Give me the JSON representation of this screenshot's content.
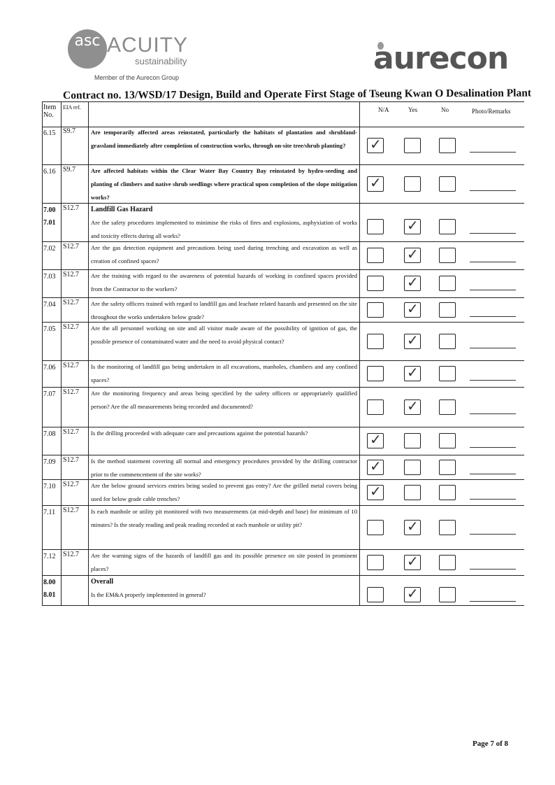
{
  "header": {
    "acuity_logo": {
      "monogram": "asc",
      "name": "ACUITY",
      "sub": "sustainability",
      "member_line": "Member of the Aurecon Group"
    },
    "aurecon_logo": "aurecon",
    "contract_title": "Contract no.  13/WSD/17 Design, Build and Operate First Stage of Tseung Kwan O Desalination Plant"
  },
  "columns": {
    "item": "Item No.",
    "eia": "EIA ref.",
    "na": "N/A",
    "yes": "Yes",
    "no": "No",
    "remarks": "Photo/Remarks"
  },
  "check_mark": "✓",
  "rows": [
    {
      "item": "6.15",
      "eia": "S9.7",
      "question": "Are temporarily affected areas reinstated, particularly the habitats of plantation and shrubland-grassland immediately after completion of construction works, through on-site tree/shrub planting?",
      "answer": "na",
      "bold": true
    },
    {
      "item": "6.16",
      "eia": "S9.7",
      "question": "Are affected habitats within the Clear Water Bay Country Bay reinstated by hydro-seeding and planting of climbers and native shrub seedlings where practical upon completion of the slope mitigation works?",
      "answer": "na",
      "bold": true
    },
    {
      "item": "7.00\n7.01",
      "eia": "S12.7",
      "section": "Landfill Gas Hazard",
      "question": "Are the safety procedures implemented to minimise the risks of fires and explosions, asphyxiation of works and toxicity effects during all works?",
      "answer": "yes",
      "bold": false
    },
    {
      "item": "7.02",
      "eia": "S12.7",
      "question": "Are the gas detection equipment and precautions being used during trenching and excavation as well as creation of confined spaces?",
      "answer": "yes"
    },
    {
      "item": "7.03",
      "eia": "S12.7",
      "question": "Are the training with regard to the awareness of potential hazards of working in confined spaces provided from the Contractor to the workers?",
      "answer": "yes"
    },
    {
      "item": "7.04",
      "eia": "S12.7",
      "question": "Are the safety officers trained with regard to landfill gas and leachate related hazards and presented on the site throughout the works undertaken below grade?",
      "answer": "yes"
    },
    {
      "item": "7.05",
      "eia": "S12.7",
      "question": "Are the all personnel working on site and all visitor made aware of the possibility of ignition of gas, the possible presence of contaminated water and the need to avoid physical contact?",
      "answer": "yes"
    },
    {
      "item": "7.06",
      "eia": "S12.7",
      "question": "Is the monitoring of landfill gas being undertaken in all excavations, manholes, chambers and any confined spaces?",
      "answer": "yes"
    },
    {
      "item": "7.07",
      "eia": "S12.7",
      "question": "Are the monitoring frequency and areas being specified by the safety officers or appropriately qualified person? Are the all measurements being recorded and documented?",
      "answer": "yes"
    },
    {
      "item": "7.08",
      "eia": "S12.7",
      "question": "Is the drilling proceeded with adequate care and precautions against the potential hazards?",
      "answer": "na"
    },
    {
      "item": "7.09",
      "eia": "S12.7",
      "question": "Is the method statement covering all normal and emergency procedures provided by the drilling contractor prior to the commencement of the site works?",
      "answer": "na"
    },
    {
      "item": "7.10",
      "eia": "S12.7",
      "question": "Are the below ground services entries being sealed to prevent gas entry? Are the grilled metal covers being used for below grade cable trenches?",
      "answer": "na"
    },
    {
      "item": "7.11",
      "eia": "S12.7",
      "question": "Is each manhole or utility pit monitored with two measurements (at mid-depth and base) for minimum of 10 minutes? Is the steady reading and peak reading recorded at each manhole or utility pit?",
      "answer": "yes"
    },
    {
      "item": "7.12",
      "eia": "S12.7",
      "question": "Are the warning signs of the hazards of landfill gas and its possible presence on site posted in prominent places?",
      "answer": "yes"
    },
    {
      "item": "8.00\n8.01",
      "eia": "",
      "section": "Overall",
      "question": "Is the EM&A properly implemented in general?",
      "answer": "yes"
    }
  ],
  "footer": {
    "page": "Page 7 of 8"
  }
}
